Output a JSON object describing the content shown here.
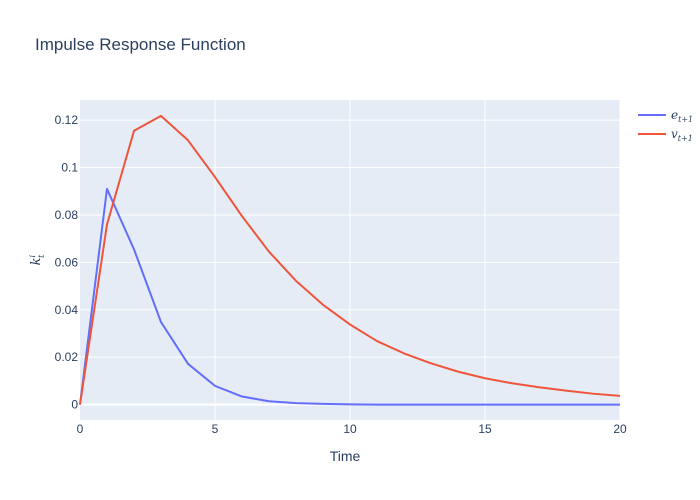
{
  "chart_data": {
    "type": "line",
    "title": "Impulse Response Function",
    "xlabel": "Time",
    "ylabel": {
      "base": "k",
      "sup": "i",
      "sub": "t"
    },
    "xlim": [
      0,
      20
    ],
    "ylim": [
      -0.0065,
      0.1285
    ],
    "xticks": [
      0,
      5,
      10,
      15,
      20
    ],
    "yticks": [
      0,
      0.02,
      0.04,
      0.06,
      0.08,
      0.1,
      0.12
    ],
    "ytick_labels": [
      "0",
      "0.02",
      "0.04",
      "0.06",
      "0.08",
      "0.1",
      "0.12"
    ],
    "grid": true,
    "legend_position": "top-right",
    "x": [
      0,
      1,
      2,
      3,
      4,
      5,
      6,
      7,
      8,
      9,
      10,
      11,
      12,
      13,
      14,
      15,
      16,
      17,
      18,
      19,
      20
    ],
    "series": [
      {
        "name": "e",
        "name_sub": "t+1",
        "color": "#636efa",
        "values": [
          0.0,
          0.091,
          0.0655,
          0.0348,
          0.0172,
          0.0079,
          0.0034,
          0.0014,
          0.0006,
          0.0003,
          0.0001,
          0.0,
          0.0,
          0.0,
          0.0,
          0.0,
          0.0,
          0.0,
          0.0,
          0.0,
          0.0
        ]
      },
      {
        "name": "v",
        "name_sub": "t+1",
        "color": "#ef553b",
        "values": [
          0.0,
          0.076,
          0.1155,
          0.1218,
          0.1115,
          0.096,
          0.0795,
          0.0645,
          0.0522,
          0.0421,
          0.0338,
          0.0268,
          0.0216,
          0.0174,
          0.0139,
          0.0111,
          0.009,
          0.0073,
          0.0059,
          0.0046,
          0.0037
        ]
      }
    ]
  }
}
